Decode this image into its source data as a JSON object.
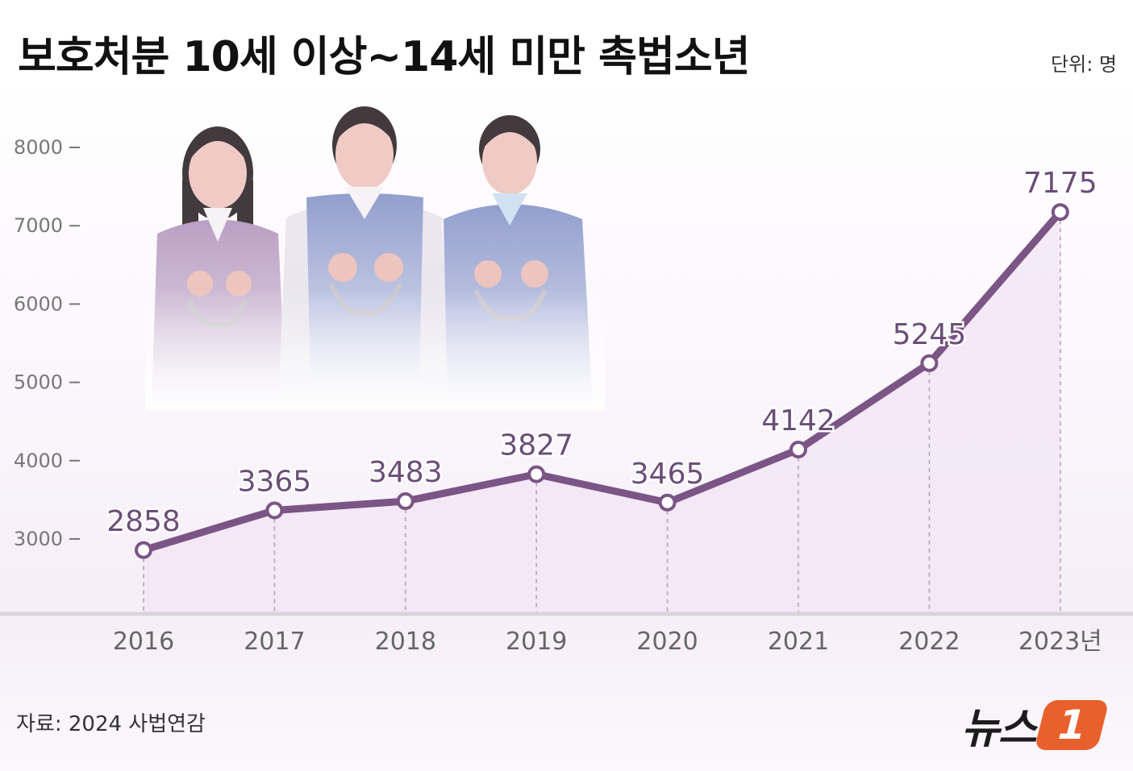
{
  "header": {
    "title": "보호처분 10세 이상~14세 미만 촉법소년",
    "unit": "단위: 명"
  },
  "footer": {
    "source": "자료: 2024 사법연감",
    "logo_text": "뉴스",
    "logo_badge": "1"
  },
  "colors": {
    "line": "#7a5585",
    "area": "#f3e6f6",
    "label": "#6b4e78"
  },
  "illustration": {
    "icon": "three-students-in-handcuffs-illustration"
  },
  "chart_data": {
    "type": "line",
    "categories": [
      "2016",
      "2017",
      "2018",
      "2019",
      "2020",
      "2021",
      "2022",
      "2023년"
    ],
    "values": [
      2858,
      3365,
      3483,
      3827,
      3465,
      4142,
      5245,
      7175
    ],
    "data_labels": [
      "2858",
      "3365",
      "3483",
      "3827",
      "3465",
      "4142",
      "5245",
      "7175"
    ],
    "ytick_labels": [
      "3000",
      "4000",
      "5000",
      "6000",
      "7000",
      "8000"
    ],
    "yticks": [
      3000,
      4000,
      5000,
      6000,
      7000,
      8000
    ],
    "ylim": [
      2000,
      8000
    ],
    "title": "보호처분 10세 이상~14세 미만 촉법소년",
    "xlabel": "",
    "ylabel": "",
    "grid": false,
    "area_fill": true
  }
}
